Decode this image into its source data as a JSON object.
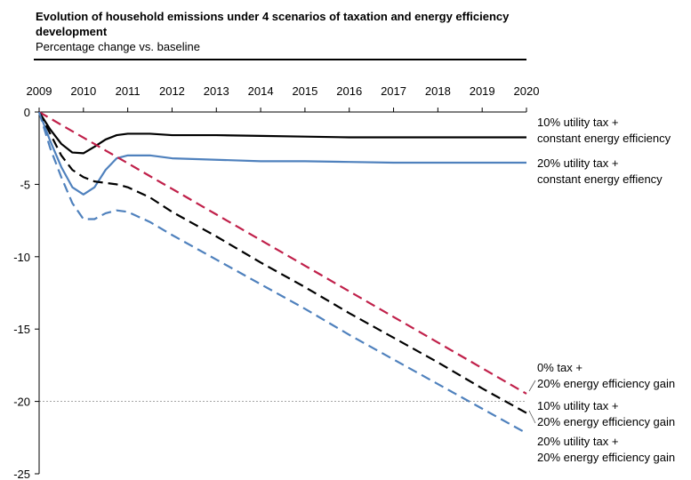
{
  "chart_data": {
    "type": "line",
    "title": "Evolution of household emissions under 4 scenarios of taxation and energy efficiency development",
    "subtitle": "Percentage change vs. baseline",
    "x": [
      2009,
      2009.25,
      2009.5,
      2009.75,
      2010,
      2010.25,
      2010.5,
      2010.75,
      2011,
      2011.5,
      2012,
      2013,
      2014,
      2015,
      2016,
      2017,
      2018,
      2019,
      2020
    ],
    "xlim": [
      2009,
      2020
    ],
    "xticks": [
      2009,
      2010,
      2011,
      2012,
      2013,
      2014,
      2015,
      2016,
      2017,
      2018,
      2019,
      2020
    ],
    "ylim": [
      0,
      -25
    ],
    "yticks": [
      0,
      -5,
      -10,
      -15,
      -20,
      -25
    ],
    "reference_line": -20,
    "series": [
      {
        "name": "10% utility tax +\nconstant energy efficiency",
        "color": "#000000",
        "dashed": false,
        "values": [
          0,
          -1.2,
          -2.2,
          -2.8,
          -2.85,
          -2.4,
          -1.9,
          -1.6,
          -1.5,
          -1.5,
          -1.6,
          -1.6,
          -1.65,
          -1.7,
          -1.75,
          -1.75,
          -1.75,
          -1.75,
          -1.75
        ]
      },
      {
        "name": "20% utility tax +\nconstant energy effiency",
        "color": "#4f81bd",
        "dashed": false,
        "values": [
          0,
          -2.0,
          -3.8,
          -5.2,
          -5.7,
          -5.2,
          -4.0,
          -3.2,
          -3.0,
          -3.0,
          -3.2,
          -3.3,
          -3.4,
          -3.4,
          -3.45,
          -3.5,
          -3.5,
          -3.5,
          -3.5
        ]
      },
      {
        "name": "0% tax +\n20% energy efficiency gain",
        "color": "#c0204a",
        "dashed": true,
        "values": [
          0,
          -0.44,
          -0.89,
          -1.33,
          -1.77,
          -2.21,
          -2.66,
          -3.1,
          -3.54,
          -4.43,
          -5.31,
          -7.08,
          -8.85,
          -10.62,
          -12.39,
          -14.16,
          -15.93,
          -17.7,
          -19.47
        ]
      },
      {
        "name": "10% utility tax +\n20% energy efficiency gain",
        "color": "#000000",
        "dashed": true,
        "values": [
          0,
          -1.5,
          -3.0,
          -4.0,
          -4.5,
          -4.8,
          -4.9,
          -5.0,
          -5.2,
          -5.9,
          -6.9,
          -8.6,
          -10.4,
          -12.1,
          -13.9,
          -15.6,
          -17.3,
          -19.1,
          -20.8
        ]
      },
      {
        "name": "20% utility tax +\n20% energy efficiency gain",
        "color": "#4f81bd",
        "dashed": true,
        "values": [
          0,
          -2.5,
          -4.5,
          -6.3,
          -7.4,
          -7.4,
          -7.0,
          -6.8,
          -6.9,
          -7.6,
          -8.5,
          -10.2,
          -11.9,
          -13.6,
          -15.4,
          -17.1,
          -18.8,
          -20.5,
          -22.2
        ]
      }
    ]
  }
}
